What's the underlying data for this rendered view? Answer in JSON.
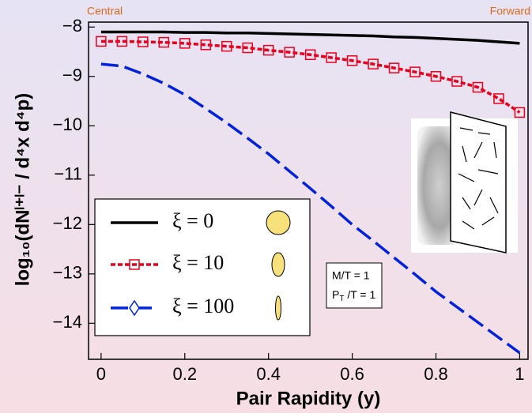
{
  "chart_data": {
    "type": "line",
    "x_label": "Pair Rapidity (y)",
    "y_label": "log₁₀(dNˡ⁺ˡ⁻ / d⁴x  d⁴p)",
    "corner_labels": [
      "Central",
      "Forward"
    ],
    "annotations": [
      [
        "M/T = 1"
      ],
      [
        "P",
        "T",
        " /T = 1"
      ]
    ],
    "x": [
      0,
      0.05,
      0.1,
      0.15,
      0.2,
      0.25,
      0.3,
      0.35,
      0.4,
      0.45,
      0.5,
      0.55,
      0.6,
      0.65,
      0.7,
      0.75,
      0.8,
      0.85,
      0.9,
      0.95,
      1
    ],
    "series": [
      {
        "name": "ξ = 0",
        "color": "#000000",
        "dash": "solid",
        "values": [
          -8.1,
          -8.1,
          -8.1,
          -8.1,
          -8.11,
          -8.11,
          -8.12,
          -8.12,
          -8.13,
          -8.14,
          -8.15,
          -8.16,
          -8.17,
          -8.18,
          -8.2,
          -8.21,
          -8.23,
          -8.25,
          -8.27,
          -8.3,
          -8.33
        ]
      },
      {
        "name": "ξ = 10",
        "color": "#e8001c",
        "dash": "dotted",
        "marker": "square",
        "marker_on_points": true,
        "values": [
          -8.29,
          -8.29,
          -8.3,
          -8.31,
          -8.33,
          -8.36,
          -8.39,
          -8.42,
          -8.47,
          -8.51,
          -8.56,
          -8.62,
          -8.68,
          -8.75,
          -8.83,
          -8.91,
          -9.0,
          -9.1,
          -9.22,
          -9.45,
          -9.73
        ]
      },
      {
        "name": "ξ = 100",
        "color": "#0022dd",
        "dash": "dashed",
        "marker": "diamond",
        "marker_on_points": false,
        "values": [
          -8.75,
          -8.79,
          -8.95,
          -9.14,
          -9.37,
          -9.65,
          -9.94,
          -10.25,
          -10.57,
          -10.92,
          -11.27,
          -11.63,
          -12.0,
          -12.33,
          -12.67,
          -13.01,
          -13.36,
          -13.67,
          -13.98,
          -14.29,
          -14.6
        ]
      }
    ],
    "xlim": [
      -0.03,
      1.02
    ],
    "ylim": [
      -14.73,
      -7.9
    ],
    "xticks": [
      0,
      0.2,
      0.4,
      0.6,
      0.8,
      1
    ],
    "yticks": [
      {
        "value": -8,
        "label": "−8"
      },
      {
        "value": -9,
        "label": "−9"
      },
      {
        "value": -10,
        "label": "−10"
      },
      {
        "value": -11,
        "label": "−11"
      },
      {
        "value": -12,
        "label": "−12"
      },
      {
        "value": -13,
        "label": "−13"
      },
      {
        "value": -14,
        "label": "−14"
      }
    ],
    "legend": "lower-left"
  }
}
